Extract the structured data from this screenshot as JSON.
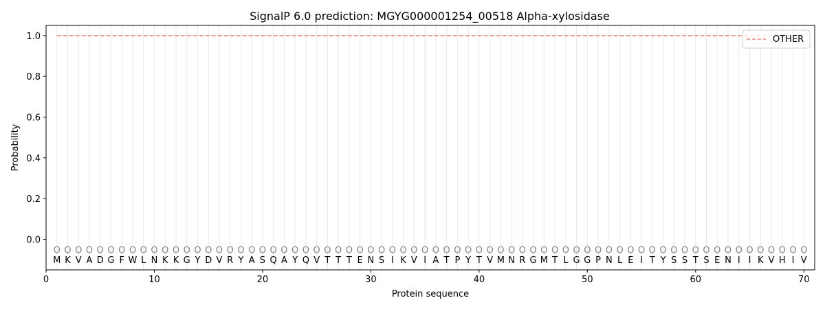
{
  "chart_data": {
    "type": "line",
    "title": "SignalP 6.0 prediction: MGYG000001254_00518 Alpha-xylosidase",
    "xlabel": "Protein sequence",
    "ylabel": "Probability",
    "xlim": [
      0,
      71
    ],
    "ylim": [
      -0.15,
      1.05
    ],
    "x_ticks": [
      "0",
      "10",
      "20",
      "30",
      "40",
      "50",
      "60",
      "70"
    ],
    "y_ticks": [
      "0.0",
      "0.2",
      "0.4",
      "0.6",
      "0.8",
      "1.0"
    ],
    "grid": "vertical lines at each residue",
    "legend_position": "top-right",
    "series": [
      {
        "name": "OTHER",
        "color": "#f08080",
        "style": "dashed",
        "x_start": 1,
        "x_end": 70,
        "value": 1.0
      }
    ],
    "sequence": [
      "M",
      "K",
      "V",
      "A",
      "D",
      "G",
      "F",
      "W",
      "L",
      "N",
      "K",
      "K",
      "G",
      "Y",
      "D",
      "V",
      "R",
      "Y",
      "A",
      "S",
      "Q",
      "A",
      "Y",
      "Q",
      "V",
      "T",
      "T",
      "T",
      "E",
      "N",
      "S",
      "I",
      "K",
      "V",
      "I",
      "A",
      "T",
      "P",
      "Y",
      "T",
      "V",
      "M",
      "N",
      "R",
      "G",
      "M",
      "T",
      "L",
      "G",
      "G",
      "P",
      "N",
      "L",
      "E",
      "I",
      "T",
      "Y",
      "S",
      "S",
      "T",
      "S",
      "E",
      "N",
      "I",
      "I",
      "K",
      "V",
      "H",
      "I",
      "V"
    ],
    "state_labels": [
      "O",
      "O",
      "O",
      "O",
      "O",
      "O",
      "O",
      "O",
      "O",
      "O",
      "O",
      "O",
      "O",
      "O",
      "O",
      "O",
      "O",
      "O",
      "O",
      "O",
      "O",
      "O",
      "O",
      "O",
      "O",
      "O",
      "O",
      "O",
      "O",
      "O",
      "O",
      "O",
      "O",
      "O",
      "O",
      "O",
      "O",
      "O",
      "O",
      "O",
      "O",
      "O",
      "O",
      "O",
      "O",
      "O",
      "O",
      "O",
      "O",
      "O",
      "O",
      "O",
      "O",
      "O",
      "O",
      "O",
      "O",
      "O",
      "O",
      "O",
      "O",
      "O",
      "O",
      "O",
      "O",
      "O",
      "O",
      "O",
      "O",
      "O"
    ]
  }
}
